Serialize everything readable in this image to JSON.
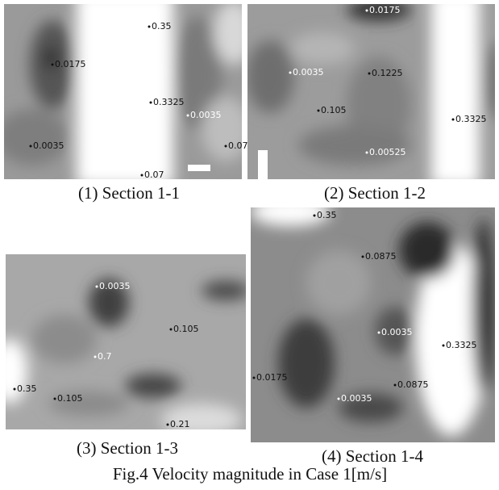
{
  "panels": [
    {
      "caption": "(1) Section 1-1",
      "labels": [
        "0.35",
        "0.0175",
        "0.3325",
        "0.0035",
        "0.0035",
        "0.07",
        "0.07"
      ]
    },
    {
      "caption": "(2) Section 1-2",
      "labels": [
        "0.0175",
        "0.0035",
        "0.1225",
        "0.105",
        "0.3325",
        "0.00525"
      ]
    },
    {
      "caption": "(3) Section 1-3",
      "labels": [
        "0.0035",
        "0.105",
        "0.7",
        "0.35",
        "0.105",
        "0.21"
      ]
    },
    {
      "caption": "(4) Section 1-4",
      "labels": [
        "0.35",
        "0.0875",
        "0.0035",
        "0.3325",
        "0.0175",
        "0.0875",
        "0.0035"
      ]
    }
  ],
  "figure_caption": "Fig.4 Velocity magnitude in Case 1[m/s]"
}
